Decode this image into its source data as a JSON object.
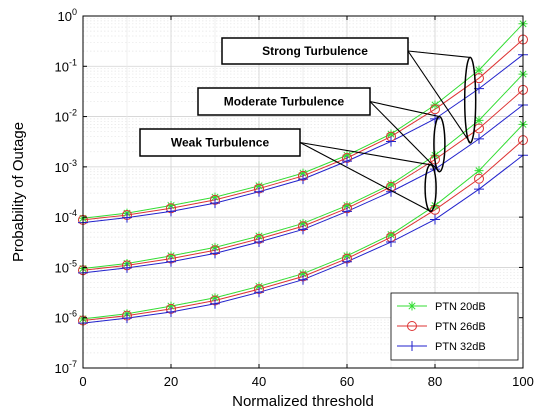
{
  "chart_data": {
    "type": "line",
    "title": "",
    "xlabel": "Normalized threshold",
    "ylabel": "Probability of Outage",
    "xlim": [
      0,
      100
    ],
    "ylim_exp": [
      -7,
      0
    ],
    "y_scale": "log",
    "x_ticks": [
      "0",
      "20",
      "40",
      "60",
      "80",
      "100"
    ],
    "y_tick_exponents": [
      "0",
      "-1",
      "-2",
      "-3",
      "-4",
      "-5",
      "-6",
      "-7"
    ],
    "y_tick_base": "10",
    "grid": true,
    "legend_position": "bottom-right",
    "x": [
      0,
      10,
      20,
      30,
      40,
      50,
      60,
      70,
      80,
      90,
      100
    ],
    "series": [
      {
        "name": "PTN 20dB",
        "color": "#33dd33",
        "marker": "star",
        "groups": [
          [
            9.5e-06,
            1.2e-05,
            1.7e-05,
            2.5e-05,
            4.2e-05,
            7.5e-05,
            0.00017,
            0.00045,
            0.0017,
            0.0084,
            0.07
          ],
          [
            9.5e-05,
            0.00012,
            0.00017,
            0.00025,
            0.00042,
            0.00075,
            0.0017,
            0.0045,
            0.017,
            0.084,
            0.7
          ],
          [
            9.5e-07,
            1.2e-06,
            1.7e-06,
            2.5e-06,
            4.2e-06,
            7.5e-06,
            1.7e-05,
            4.5e-05,
            0.00017,
            0.00084,
            0.007
          ]
        ]
      },
      {
        "name": "PTN 26dB",
        "color": "#dd3333",
        "marker": "circle",
        "groups": [
          [
            8.8e-06,
            1.1e-05,
            1.5e-05,
            2.2e-05,
            3.7e-05,
            6.6e-05,
            0.00015,
            0.0004,
            0.0014,
            0.0058,
            0.034
          ],
          [
            8.8e-05,
            0.00011,
            0.00015,
            0.00022,
            0.00037,
            0.00066,
            0.0015,
            0.004,
            0.014,
            0.058,
            0.34
          ],
          [
            8.8e-07,
            1.1e-06,
            1.5e-06,
            2.2e-06,
            3.7e-06,
            6.6e-06,
            1.5e-05,
            4e-05,
            0.00014,
            0.00058,
            0.0034
          ]
        ]
      },
      {
        "name": "PTN 32dB",
        "color": "#2222cc",
        "marker": "plus",
        "groups": [
          [
            7.8e-06,
            9.8e-06,
            1.3e-05,
            1.9e-05,
            3.2e-05,
            5.7e-05,
            0.00013,
            0.00032,
            0.0009,
            0.0036,
            0.017
          ],
          [
            7.8e-05,
            9.8e-05,
            0.00013,
            0.00019,
            0.00032,
            0.00057,
            0.0013,
            0.0032,
            0.009,
            0.036,
            0.17
          ],
          [
            7.8e-07,
            9.8e-07,
            1.3e-06,
            1.9e-06,
            3.2e-06,
            5.7e-06,
            1.3e-05,
            3.2e-05,
            9e-05,
            0.00036,
            0.0017
          ]
        ]
      }
    ],
    "annotations": [
      {
        "label": "Strong Turbulence",
        "ellipse_x": 88,
        "ellipse_y_range": [
          0.003,
          0.15
        ]
      },
      {
        "label": "Moderate Turbulence",
        "ellipse_x": 81,
        "ellipse_y_range": [
          0.0008,
          0.01
        ]
      },
      {
        "label": "Weak Turbulence",
        "ellipse_x": 79,
        "ellipse_y_range": [
          0.00013,
          0.0011
        ]
      }
    ]
  }
}
